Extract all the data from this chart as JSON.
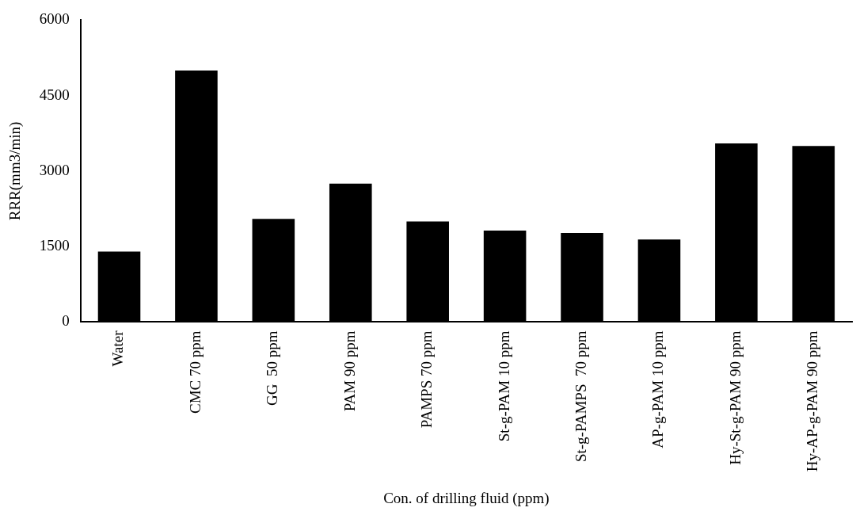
{
  "chart_data": {
    "type": "bar",
    "xlabel": "Con. of drilling fluid (ppm)",
    "ylabel": "RRR(mm3/min)",
    "categories": [
      "Water",
      "CMC 70 ppm",
      "GG  50 ppm",
      "PAM 90 ppm",
      "PAMPS 70 ppm",
      "St-g-PAM 10 ppm",
      "St-g-PAMPS  70 ppm",
      "AP-g-PAM 10 ppm",
      "Hy-St-g-PAM 90 ppm",
      "Hy-AP-g-PAM 90 ppm"
    ],
    "values": [
      1400,
      5000,
      2050,
      2750,
      2000,
      1820,
      1770,
      1640,
      3550,
      3500
    ],
    "color": "#000000",
    "ylim": [
      0,
      6000
    ],
    "yticks": [
      0,
      1500,
      3000,
      4500,
      6000
    ],
    "grid": false,
    "legend": false
  }
}
